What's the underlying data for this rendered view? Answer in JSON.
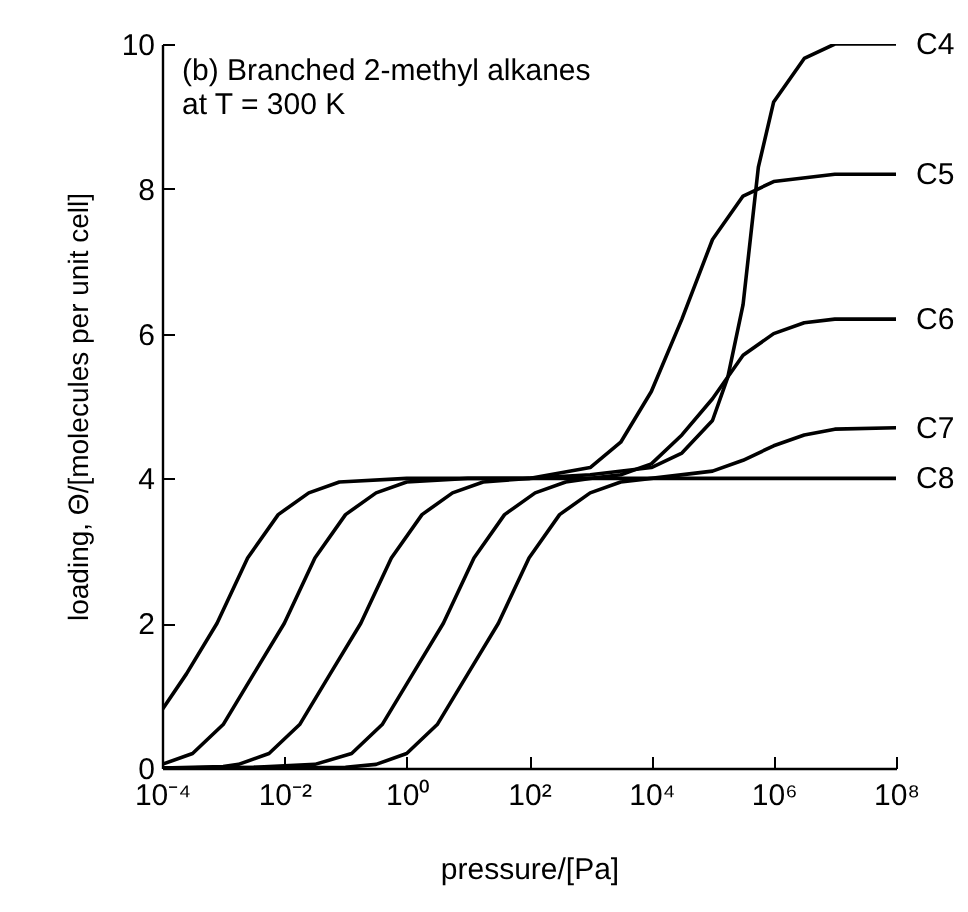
{
  "chart_data": {
    "type": "line",
    "title": "(b) Branched 2-methyl alkanes\nat T = 300 K",
    "xlabel": "pressure/[Pa]",
    "ylabel": "loading, Θ/[molecules per unit cell]",
    "log": "x",
    "xlim": [
      0.0001,
      100000000
    ],
    "xticks": [
      {
        "value": 0.0001,
        "label": "10⁻⁴"
      },
      {
        "value": 0.01,
        "label": "10⁻²"
      },
      {
        "value": 1,
        "label": "10⁰"
      },
      {
        "value": 100,
        "label": "10²"
      },
      {
        "value": 10000,
        "label": "10⁴"
      },
      {
        "value": 1000000,
        "label": "10⁶"
      },
      {
        "value": 100000000,
        "label": "10⁸"
      }
    ],
    "ylim": [
      0,
      10
    ],
    "yticks": [
      0,
      2,
      4,
      6,
      8,
      10
    ],
    "grid": false,
    "legend": false,
    "marker": "none",
    "line_style": "solid",
    "series": [
      {
        "name": "C4",
        "color": "#000000",
        "x": [
          0.0001,
          0.000251,
          0.000794,
          0.00251,
          0.00794,
          0.0251,
          0.0794,
          1,
          100,
          1000,
          10000,
          31600,
          100000,
          178000,
          316000,
          562000,
          1000000,
          3160000,
          10000000,
          100000000
        ],
        "values": [
          0.8,
          1.3,
          2.0,
          2.9,
          3.5,
          3.8,
          3.95,
          4.0,
          4.0,
          4.05,
          4.15,
          4.35,
          4.8,
          5.4,
          6.4,
          8.3,
          9.2,
          9.8,
          10.0,
          10.0
        ]
      },
      {
        "name": "C5",
        "color": "#000000",
        "x": [
          0.0001,
          0.000316,
          0.001,
          0.00316,
          0.01,
          0.0316,
          0.1,
          0.316,
          1,
          10,
          100,
          1000,
          3160,
          10000,
          31600,
          100000,
          316000,
          1000000,
          10000000,
          100000000
        ],
        "values": [
          0.05,
          0.2,
          0.6,
          1.3,
          2.0,
          2.9,
          3.5,
          3.8,
          3.95,
          4.0,
          4.0,
          4.15,
          4.5,
          5.2,
          6.2,
          7.3,
          7.9,
          8.1,
          8.2,
          8.2
        ]
      },
      {
        "name": "C6",
        "color": "#000000",
        "x": [
          0.0001,
          0.001,
          0.00178,
          0.00562,
          0.0178,
          0.0562,
          0.178,
          0.562,
          1.78,
          5.62,
          17.8,
          100,
          1000,
          3160,
          10000,
          31600,
          100000,
          316000,
          1000000,
          3160000,
          10000000,
          100000000
        ],
        "values": [
          0,
          0.02,
          0.05,
          0.2,
          0.6,
          1.3,
          2.0,
          2.9,
          3.5,
          3.8,
          3.95,
          4.0,
          4.0,
          4.05,
          4.2,
          4.6,
          5.1,
          5.7,
          6.0,
          6.15,
          6.2,
          6.2
        ]
      },
      {
        "name": "C7",
        "color": "#000000",
        "x": [
          0.0001,
          0.00316,
          0.0316,
          0.126,
          0.398,
          1.26,
          3.98,
          12.6,
          39.8,
          126,
          398,
          1000,
          10000,
          100000,
          316000,
          1000000,
          3160000,
          10000000,
          100000000
        ],
        "values": [
          0,
          0.01,
          0.05,
          0.2,
          0.6,
          1.3,
          2.0,
          2.9,
          3.5,
          3.8,
          3.95,
          4.0,
          4.0,
          4.1,
          4.25,
          4.45,
          4.6,
          4.68,
          4.7
        ]
      },
      {
        "name": "C8",
        "color": "#000000",
        "x": [
          0.0001,
          0.1,
          0.316,
          1,
          3.16,
          10,
          31.6,
          100,
          316,
          1000,
          3160,
          10000,
          100000000
        ],
        "values": [
          0,
          0.01,
          0.05,
          0.2,
          0.6,
          1.3,
          2.0,
          2.9,
          3.5,
          3.8,
          3.95,
          4.0,
          4.0
        ]
      }
    ]
  }
}
